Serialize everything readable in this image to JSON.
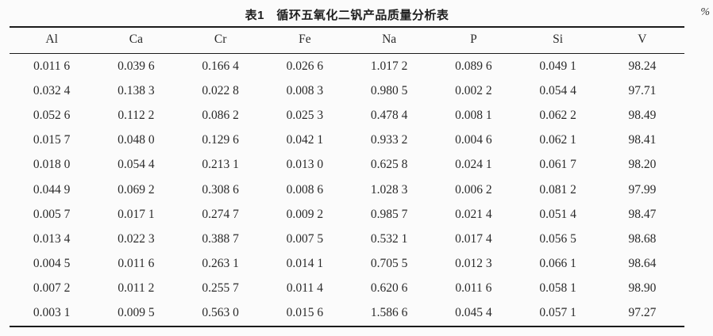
{
  "table": {
    "title": "表1　循环五氧化二钒产品质量分析表",
    "unit": "%",
    "columns": [
      "Al",
      "Ca",
      "Cr",
      "Fe",
      "Na",
      "P",
      "Si",
      "V"
    ],
    "rows": [
      [
        "0.011 6",
        "0.039 6",
        "0.166 4",
        "0.026 6",
        "1.017 2",
        "0.089 6",
        "0.049 1",
        "98.24"
      ],
      [
        "0.032 4",
        "0.138 3",
        "0.022 8",
        "0.008 3",
        "0.980 5",
        "0.002 2",
        "0.054 4",
        "97.71"
      ],
      [
        "0.052 6",
        "0.112 2",
        "0.086 2",
        "0.025 3",
        "0.478 4",
        "0.008 1",
        "0.062 2",
        "98.49"
      ],
      [
        "0.015 7",
        "0.048 0",
        "0.129 6",
        "0.042 1",
        "0.933 2",
        "0.004 6",
        "0.062 1",
        "98.41"
      ],
      [
        "0.018 0",
        "0.054 4",
        "0.213 1",
        "0.013 0",
        "0.625 8",
        "0.024 1",
        "0.061 7",
        "98.20"
      ],
      [
        "0.044 9",
        "0.069 2",
        "0.308 6",
        "0.008 6",
        "1.028 3",
        "0.006 2",
        "0.081 2",
        "97.99"
      ],
      [
        "0.005 7",
        "0.017 1",
        "0.274 7",
        "0.009 2",
        "0.985 7",
        "0.021 4",
        "0.051 4",
        "98.47"
      ],
      [
        "0.013 4",
        "0.022 3",
        "0.388 7",
        "0.007 5",
        "0.532 1",
        "0.017 4",
        "0.056 5",
        "98.68"
      ],
      [
        "0.004 5",
        "0.011 6",
        "0.263 1",
        "0.014 1",
        "0.705 5",
        "0.012 3",
        "0.066 1",
        "98.64"
      ],
      [
        "0.007 2",
        "0.011 2",
        "0.255 7",
        "0.011 4",
        "0.620 6",
        "0.011 6",
        "0.058 1",
        "98.90"
      ],
      [
        "0.003 1",
        "0.009 5",
        "0.563 0",
        "0.015 6",
        "1.586 6",
        "0.045 4",
        "0.057 1",
        "97.27"
      ]
    ]
  }
}
